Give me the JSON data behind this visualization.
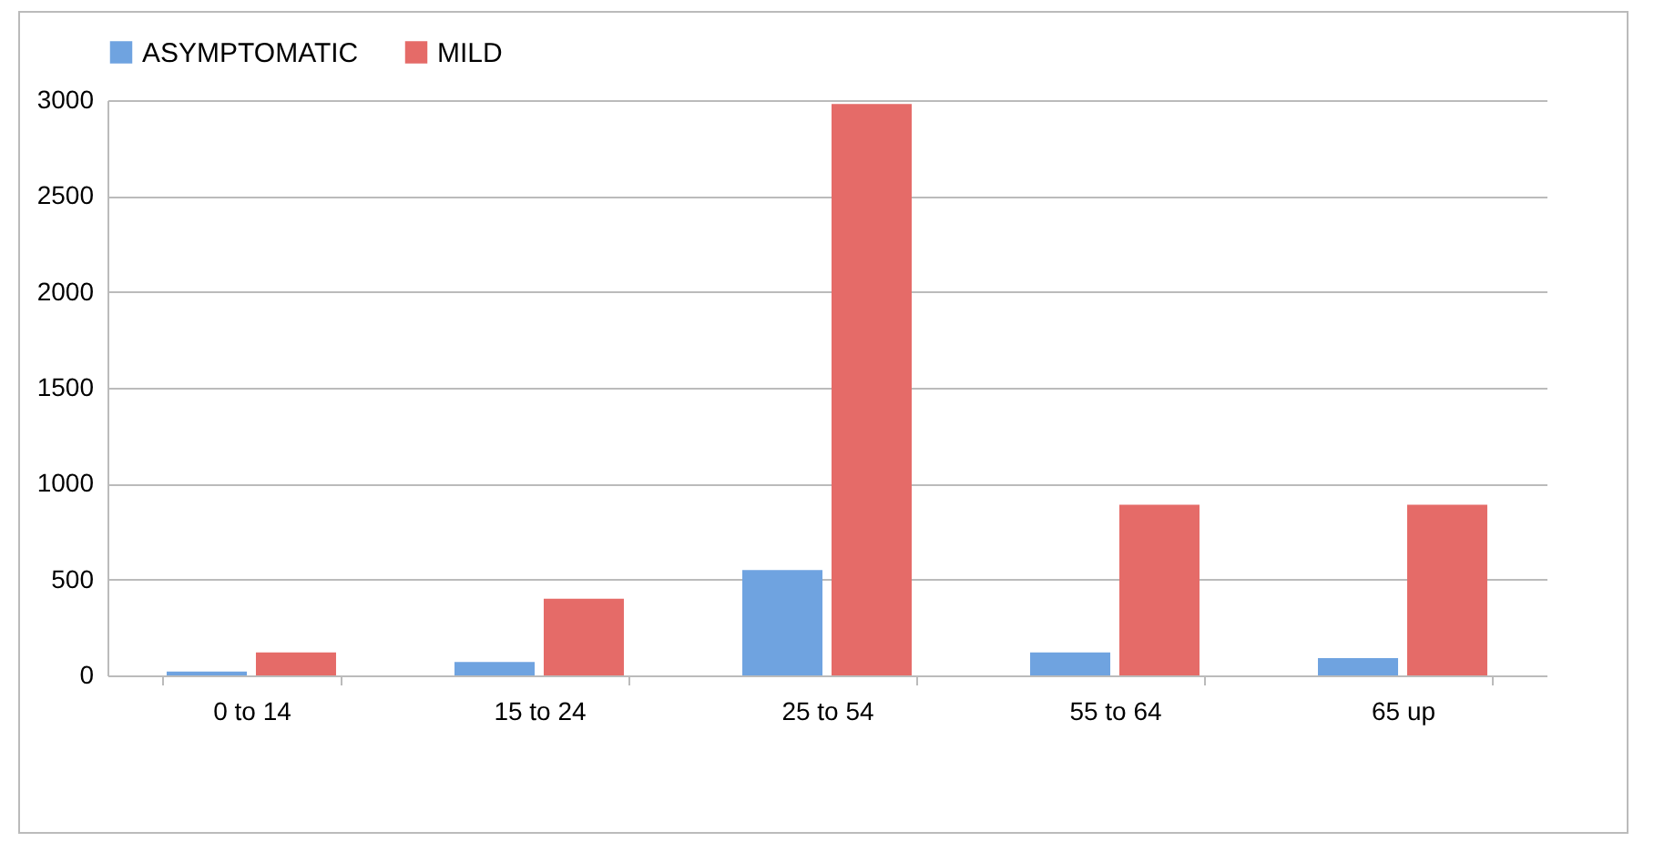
{
  "chart_data": {
    "type": "bar",
    "categories": [
      "0 to 14",
      "15 to 24",
      "25 to 54",
      "55 to 64",
      "65 up"
    ],
    "series": [
      {
        "name": "ASYMPTOMATIC",
        "color": "#6fa3e0",
        "values": [
          20,
          70,
          550,
          120,
          90
        ]
      },
      {
        "name": "MILD",
        "color": "#e56b68",
        "values": [
          120,
          400,
          2980,
          890,
          890
        ]
      }
    ],
    "ylim": [
      0,
      3000
    ],
    "yticks": [
      0,
      500,
      1000,
      1500,
      2000,
      2500,
      3000
    ],
    "grid": "y",
    "legend": "top"
  }
}
